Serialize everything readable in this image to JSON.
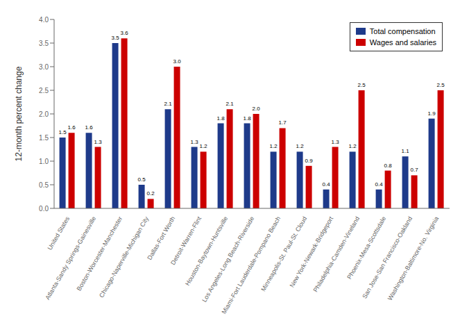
{
  "chart_data": {
    "type": "bar",
    "categories": [
      "United States",
      "Atlanta-Sandy Springs-Gainesville",
      "Boston-Worcester-Manchester",
      "Chicago-Naperville-Michigan City",
      "Dallas-Fort Worth",
      "Detroit-Warren-Flint",
      "Houston-Baytown-Huntsville",
      "Los Angeles-Long Beach-Riverside",
      "Miami-Fort Lauderdale-Pompano Beach",
      "Minneapolis-St. Paul-St. Cloud",
      "New York-Newark-Bridgeport",
      "Philadelphia-Camden-Vineland",
      "Phoenix-Mesa-Scottsdale",
      "San Jose-San Francisco-Oakland",
      "Washington-Baltimore-No. Virginia"
    ],
    "series": [
      {
        "name": "Total compensation",
        "color": "#1E3A8A",
        "values": [
          1.5,
          1.6,
          3.5,
          0.5,
          2.1,
          1.3,
          1.8,
          1.8,
          1.2,
          1.2,
          0.4,
          1.2,
          0.4,
          1.1,
          1.9
        ]
      },
      {
        "name": "Wages and salaries",
        "color": "#CC0000",
        "values": [
          1.6,
          1.3,
          3.6,
          0.2,
          3.0,
          1.2,
          2.1,
          2.0,
          1.7,
          0.9,
          1.3,
          2.5,
          0.8,
          0.7,
          2.5
        ],
        "value_labels": [
          "1.6",
          "1.3",
          "3.6",
          "0.2",
          "3.0",
          "1.2",
          "2.1",
          "2.0",
          "1.7",
          "0.9",
          "1.3",
          "2.5",
          "0.8",
          "0.7",
          "2.5"
        ]
      }
    ],
    "ylabel": "12-month percent change",
    "ylim": [
      0,
      4.0
    ],
    "yticks": [
      {
        "value": 0,
        "label": "0.0"
      },
      0.5,
      {
        "value": 1,
        "label": "1.0"
      },
      1.5,
      {
        "value": 2,
        "label": "2.0"
      },
      2.5,
      {
        "value": 3,
        "label": "3.0"
      },
      3.5,
      {
        "value": 4,
        "label": "4.0"
      }
    ],
    "legend": "upper right",
    "grid": false,
    "data_labels": true
  }
}
